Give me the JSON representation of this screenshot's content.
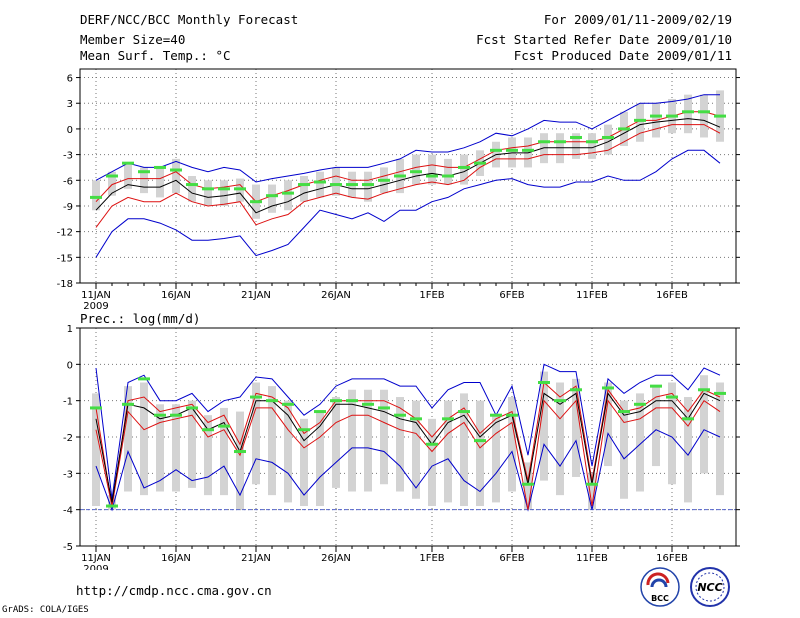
{
  "header": {
    "title": "DERF/NCC/BCC Monthly Forecast",
    "member_size": "Member Size=40",
    "variable": "Mean Surf. Temp.: °C",
    "period": "For 2009/01/11-2009/02/19",
    "start_date": "Fcst Started Refer Date 2009/01/10",
    "produced_date": "Fcst Produced Date 2009/01/11"
  },
  "footer": {
    "url": "http://cmdp.ncc.cma.gov.cn",
    "grads": "GrADS: COLA/IGES",
    "logo_bcc": "BCC",
    "logo_ncc": "NCC"
  },
  "colors": {
    "box": "#d3d3d3",
    "observed": "#44dd44",
    "median": "#000000",
    "quartile": "#dd1111",
    "extreme": "#0000cc",
    "floor": "#5566cc"
  },
  "chart_data": [
    {
      "type": "line",
      "title": "Mean Surf. Temp.: °C",
      "ylabel": "Mean Surf. Temp. (°C)",
      "ylim": [
        -18,
        7
      ],
      "yticks": [
        -18,
        -15,
        -12,
        -9,
        -6,
        -3,
        0,
        3,
        6
      ],
      "x_count": 40,
      "x_tick_indices": [
        0,
        5,
        10,
        15,
        21,
        26,
        31,
        36
      ],
      "x_tick_labels": [
        "11JAN",
        "16JAN",
        "21JAN",
        "26JAN",
        "1FEB",
        "6FEB",
        "11FEB",
        "16FEB"
      ],
      "x_year_label": "2009",
      "series": [
        {
          "name": "max",
          "role": "extreme",
          "values": [
            -6,
            -5,
            -4,
            -4.5,
            -4.5,
            -3.8,
            -4.5,
            -5,
            -4.5,
            -4.8,
            -6.2,
            -5.8,
            -5.5,
            -5.2,
            -4.8,
            -4.5,
            -4.5,
            -4.5,
            -4,
            -3.5,
            -2.5,
            -2.7,
            -2.7,
            -2.2,
            -1.5,
            -0.5,
            -0.8,
            0,
            1,
            0.8,
            0.8,
            0,
            1,
            2,
            3,
            3,
            3.2,
            3.5,
            4,
            4
          ]
        },
        {
          "name": "q3",
          "role": "quartile",
          "values": [
            -8.5,
            -6.5,
            -5.8,
            -5.8,
            -5.8,
            -5,
            -6.5,
            -7,
            -6.8,
            -6.5,
            -8.5,
            -7.8,
            -7.2,
            -6.5,
            -6,
            -5.5,
            -6,
            -6,
            -5.5,
            -5,
            -4.5,
            -4.2,
            -4.5,
            -4.5,
            -3.5,
            -2.5,
            -2.2,
            -2,
            -1.5,
            -1.5,
            -1.5,
            -1.5,
            -1,
            0,
            1,
            1,
            1.5,
            2,
            2,
            1.5
          ]
        },
        {
          "name": "median",
          "role": "median",
          "values": [
            -9.5,
            -7.5,
            -6.5,
            -6.8,
            -6.8,
            -6,
            -7.5,
            -8,
            -7.8,
            -7.5,
            -9.8,
            -9,
            -8.5,
            -7.5,
            -7,
            -6.5,
            -7,
            -7,
            -6.5,
            -6,
            -5.5,
            -5.2,
            -5.5,
            -5,
            -4,
            -3,
            -2.8,
            -2.8,
            -2.2,
            -2.2,
            -2.2,
            -2.2,
            -1.5,
            -0.5,
            0.5,
            0.8,
            1,
            1.2,
            1,
            0.2
          ]
        },
        {
          "name": "q1",
          "role": "quartile",
          "values": [
            -11.5,
            -9,
            -8,
            -8.5,
            -8.5,
            -7.5,
            -8.5,
            -9,
            -8.8,
            -8.5,
            -11.2,
            -10.5,
            -10,
            -8.5,
            -8,
            -7.5,
            -8,
            -8.2,
            -7.5,
            -7,
            -6.5,
            -6.2,
            -6.5,
            -6,
            -4.5,
            -3.5,
            -3.5,
            -3.5,
            -3,
            -3,
            -3,
            -2.8,
            -2.5,
            -1.5,
            -0.5,
            0,
            0.5,
            0.5,
            0.5,
            -0.5
          ]
        },
        {
          "name": "min",
          "role": "extreme",
          "values": [
            -15,
            -12,
            -10.5,
            -10.5,
            -11,
            -11.8,
            -13,
            -13,
            -12.8,
            -12.5,
            -14.8,
            -14.2,
            -13.5,
            -11.5,
            -9.5,
            -10,
            -10.5,
            -9.8,
            -10.8,
            -9.5,
            -9.5,
            -8.5,
            -8,
            -7,
            -6.5,
            -6,
            -5.8,
            -6.5,
            -6.8,
            -6.8,
            -6.2,
            -6.2,
            -5.5,
            -6,
            -6,
            -5,
            -3.5,
            -2.5,
            -2.5,
            -4
          ]
        },
        {
          "name": "box_top",
          "role": "box",
          "values": [
            -6,
            -5,
            -4,
            -4.5,
            -4.5,
            -3.5,
            -5.5,
            -6,
            -6,
            -5.8,
            -6.5,
            -6.5,
            -6,
            -5.5,
            -5,
            -4.5,
            -5,
            -5,
            -4.5,
            -3.5,
            -3,
            -3,
            -3.5,
            -3,
            -2.5,
            -1.5,
            -1,
            -1,
            -0.5,
            -0.5,
            -0.5,
            -0.5,
            0.5,
            2,
            3,
            3,
            3.5,
            4,
            4,
            4.5
          ]
        },
        {
          "name": "box_bottom",
          "role": "box",
          "values": [
            -9.5,
            -7.8,
            -7,
            -7.5,
            -8,
            -7.5,
            -8.5,
            -9,
            -9,
            -8.5,
            -10.5,
            -9.8,
            -9.5,
            -8.5,
            -8,
            -7.8,
            -8,
            -8.5,
            -7.5,
            -7.5,
            -6.5,
            -6.5,
            -6.5,
            -6.5,
            -5.5,
            -4.5,
            -4.5,
            -4.5,
            -4,
            -4,
            -3.5,
            -3.5,
            -3,
            -2,
            -1.5,
            -1,
            -0.5,
            -0.5,
            -1,
            -1.5
          ]
        },
        {
          "name": "observed",
          "role": "observed",
          "values": [
            -8,
            -5.5,
            -4,
            -5,
            -4.5,
            -4.8,
            -6.5,
            -7,
            -7,
            -7,
            -8.5,
            -7.8,
            -7.5,
            -6.5,
            -6.2,
            -6.5,
            -6.5,
            -6.5,
            -6,
            -5.5,
            -5,
            -5.5,
            -5.5,
            -4.5,
            -4,
            -2.5,
            -2.5,
            -2.5,
            -1.5,
            -1.5,
            -1,
            -1.5,
            -1,
            0,
            1,
            1.5,
            1.5,
            2,
            2,
            1.5
          ]
        }
      ]
    },
    {
      "type": "line",
      "title": "Prec.: log(mm/d)",
      "ylabel": "Prec. log(mm/d)",
      "ylim": [
        -5,
        1
      ],
      "yticks": [
        -5,
        -4,
        -3,
        -2,
        -1,
        0,
        1
      ],
      "x_count": 40,
      "x_tick_indices": [
        0,
        5,
        10,
        15,
        21,
        26,
        31,
        36
      ],
      "x_tick_labels": [
        "11JAN",
        "16JAN",
        "21JAN",
        "26JAN",
        "1FEB",
        "6FEB",
        "11FEB",
        "16FEB"
      ],
      "x_year_label": "2009",
      "floor_value": -4,
      "series": [
        {
          "name": "max",
          "role": "extreme",
          "values": [
            -0.1,
            -3.7,
            -0.5,
            -0.3,
            -1,
            -1,
            -0.8,
            -1.3,
            -1,
            -0.9,
            -0.35,
            -0.4,
            -0.9,
            -1.4,
            -1.1,
            -0.6,
            -0.4,
            -0.4,
            -0.4,
            -0.6,
            -0.6,
            -1.2,
            -0.7,
            -0.5,
            -0.5,
            -1.4,
            -0.6,
            -2.5,
            0,
            -0.2,
            -0.2,
            -2.8,
            -0.4,
            -0.8,
            -0.5,
            -0.3,
            -0.3,
            -0.7,
            -0.1,
            -0.3
          ]
        },
        {
          "name": "q3",
          "role": "quartile",
          "values": [
            -1.2,
            -3.9,
            -1,
            -0.9,
            -1.3,
            -1.2,
            -1.1,
            -1.6,
            -1.4,
            -2.2,
            -0.8,
            -0.9,
            -1.2,
            -1.9,
            -1.6,
            -1,
            -1,
            -1,
            -1,
            -1.2,
            -1.5,
            -2,
            -1.5,
            -1.2,
            -1.9,
            -1.5,
            -1.3,
            -3.2,
            -0.5,
            -0.9,
            -0.6,
            -3.2,
            -0.7,
            -1.3,
            -1.2,
            -0.9,
            -0.8,
            -1.3,
            -0.7,
            -0.9
          ]
        },
        {
          "name": "median",
          "role": "median",
          "values": [
            -1.5,
            -3.8,
            -1.1,
            -1.2,
            -1.5,
            -1.4,
            -1.2,
            -1.8,
            -1.6,
            -2.4,
            -1,
            -1,
            -1.4,
            -2.1,
            -1.7,
            -1.1,
            -1.1,
            -1.2,
            -1.3,
            -1.5,
            -1.6,
            -2.2,
            -1.6,
            -1.4,
            -2,
            -1.6,
            -1.4,
            -3.3,
            -0.8,
            -1.1,
            -0.8,
            -3.3,
            -0.8,
            -1.4,
            -1.3,
            -1,
            -1,
            -1.5,
            -0.8,
            -1
          ]
        },
        {
          "name": "q1",
          "role": "quartile",
          "values": [
            -1.8,
            -3.9,
            -1.3,
            -1.8,
            -1.6,
            -1.5,
            -1.4,
            -2,
            -1.8,
            -2.5,
            -1.2,
            -1.2,
            -1.8,
            -2.3,
            -2,
            -1.6,
            -1.4,
            -1.4,
            -1.6,
            -1.8,
            -1.9,
            -2.4,
            -1.9,
            -1.6,
            -2.3,
            -1.9,
            -1.6,
            -4,
            -1,
            -1.5,
            -1,
            -3.9,
            -1,
            -1.6,
            -1.5,
            -1.2,
            -1.2,
            -1.7,
            -1,
            -1.3
          ]
        },
        {
          "name": "min",
          "role": "extreme",
          "values": [
            -2.8,
            -4,
            -2.4,
            -3.4,
            -3.2,
            -2.9,
            -3.2,
            -3.1,
            -2.8,
            -3.6,
            -2.6,
            -2.7,
            -3,
            -3.6,
            -3.1,
            -2.7,
            -2.3,
            -2.3,
            -2.4,
            -2.8,
            -3.4,
            -2.8,
            -2.6,
            -3.2,
            -3.5,
            -3,
            -2.4,
            -4,
            -2.2,
            -2.8,
            -2.1,
            -4,
            -1.9,
            -2.6,
            -2.2,
            -1.8,
            -2,
            -2.5,
            -1.8,
            -2
          ]
        },
        {
          "name": "box_top",
          "role": "box",
          "values": [
            -0.8,
            -3.6,
            -0.6,
            -0.5,
            -1.1,
            -1.1,
            -1,
            -1.4,
            -1.2,
            -1.3,
            -0.5,
            -0.6,
            -1,
            -1.5,
            -1.3,
            -0.9,
            -0.7,
            -0.7,
            -0.7,
            -0.9,
            -1,
            -1.5,
            -1,
            -0.8,
            -1,
            -1.4,
            -0.9,
            -2.7,
            -0.2,
            -0.5,
            -0.4,
            -3,
            -0.5,
            -1,
            -0.8,
            -0.6,
            -0.5,
            -0.9,
            -0.3,
            -0.5
          ]
        },
        {
          "name": "box_bottom",
          "role": "box",
          "values": [
            -3.9,
            -4,
            -3.5,
            -3.6,
            -3.5,
            -3.5,
            -3.4,
            -3.6,
            -3.6,
            -4,
            -3.3,
            -3.6,
            -3.8,
            -3.9,
            -3.9,
            -3.4,
            -3.5,
            -3.5,
            -3.3,
            -3.5,
            -3.7,
            -3.9,
            -3.8,
            -3.9,
            -3.9,
            -3.8,
            -3.5,
            -4,
            -3.2,
            -3.6,
            -3.1,
            -4,
            -2.8,
            -3.7,
            -3.5,
            -2.8,
            -3.3,
            -3.8,
            -3,
            -3.6
          ]
        },
        {
          "name": "observed",
          "role": "observed",
          "values": [
            -1.2,
            -3.9,
            -1.1,
            -0.4,
            -1.4,
            -1.4,
            -1.2,
            -1.8,
            -1.7,
            -2.4,
            -0.9,
            -1,
            -1.1,
            -1.8,
            -1.3,
            -1,
            -1,
            -1.1,
            -1.2,
            -1.4,
            -1.5,
            -2.2,
            -1.5,
            -1.3,
            -2.1,
            -1.4,
            -1.4,
            -3.3,
            -0.5,
            -1,
            -0.7,
            -3.3,
            -0.65,
            -1.3,
            -1.1,
            -0.6,
            -0.9,
            -1.5,
            -0.7,
            -0.8
          ]
        }
      ]
    }
  ]
}
